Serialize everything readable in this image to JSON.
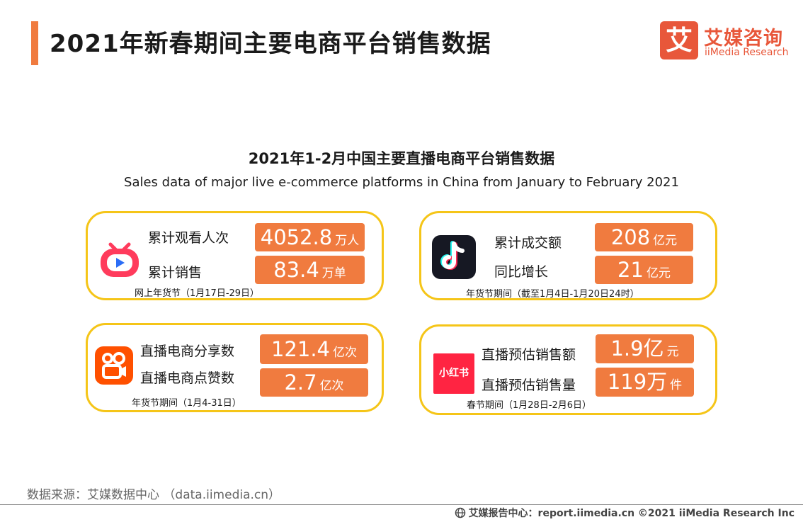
{
  "header": {
    "title": "2021年新春期间主要电商平台销售数据"
  },
  "logo": {
    "mark": "艾",
    "name_cn": "艾媒咨询",
    "name_en": "iiMedia Research"
  },
  "subtitle": {
    "cn": "2021年1-2月中国主要直播电商平台销售数据",
    "en": "Sales data of major live e-commerce platforms in China from January to February 2021"
  },
  "cards": {
    "taobao": {
      "icon": "taobao-live-icon",
      "metrics": [
        {
          "label": "累计观看人次",
          "value": "4052.8",
          "unit": "万人"
        },
        {
          "label": "累计销售",
          "value": "83.4",
          "unit": "万单"
        }
      ],
      "note": "网上年货节（1月17日-29日）"
    },
    "douyin": {
      "icon": "douyin-icon",
      "metrics": [
        {
          "label": "累计成交额",
          "value": "208",
          "unit": "亿元"
        },
        {
          "label": "同比增长",
          "value": "21",
          "unit": "亿元"
        }
      ],
      "note": "年货节期间（截至1月4日-1月20日24时）"
    },
    "kuaishou": {
      "icon": "kuaishou-icon",
      "metrics": [
        {
          "label": "直播电商分享数",
          "value": "121.4",
          "unit": "亿次"
        },
        {
          "label": "直播电商点赞数",
          "value": "2.7",
          "unit": "亿次"
        }
      ],
      "note": "年货节期间（1月4-31日）"
    },
    "xiaohongshu": {
      "icon": "xiaohongshu-icon",
      "icon_text": "小红书",
      "metrics": [
        {
          "label": "直播预估销售额",
          "value": "1.9亿",
          "unit": "元"
        },
        {
          "label": "直播预估销售量",
          "value": "119万",
          "unit": "件"
        }
      ],
      "note": "春节期间（1月28日-2月6日）"
    }
  },
  "footer": {
    "source": "数据来源：艾媒数据中心 （data.iimedia.cn）",
    "copyright": "艾媒报告中心：report.iimedia.cn  ©2021  iiMedia Research  Inc"
  },
  "colors": {
    "accent": "#f07b3f",
    "card_border": "#f5c518",
    "brand": "#e8573a"
  }
}
